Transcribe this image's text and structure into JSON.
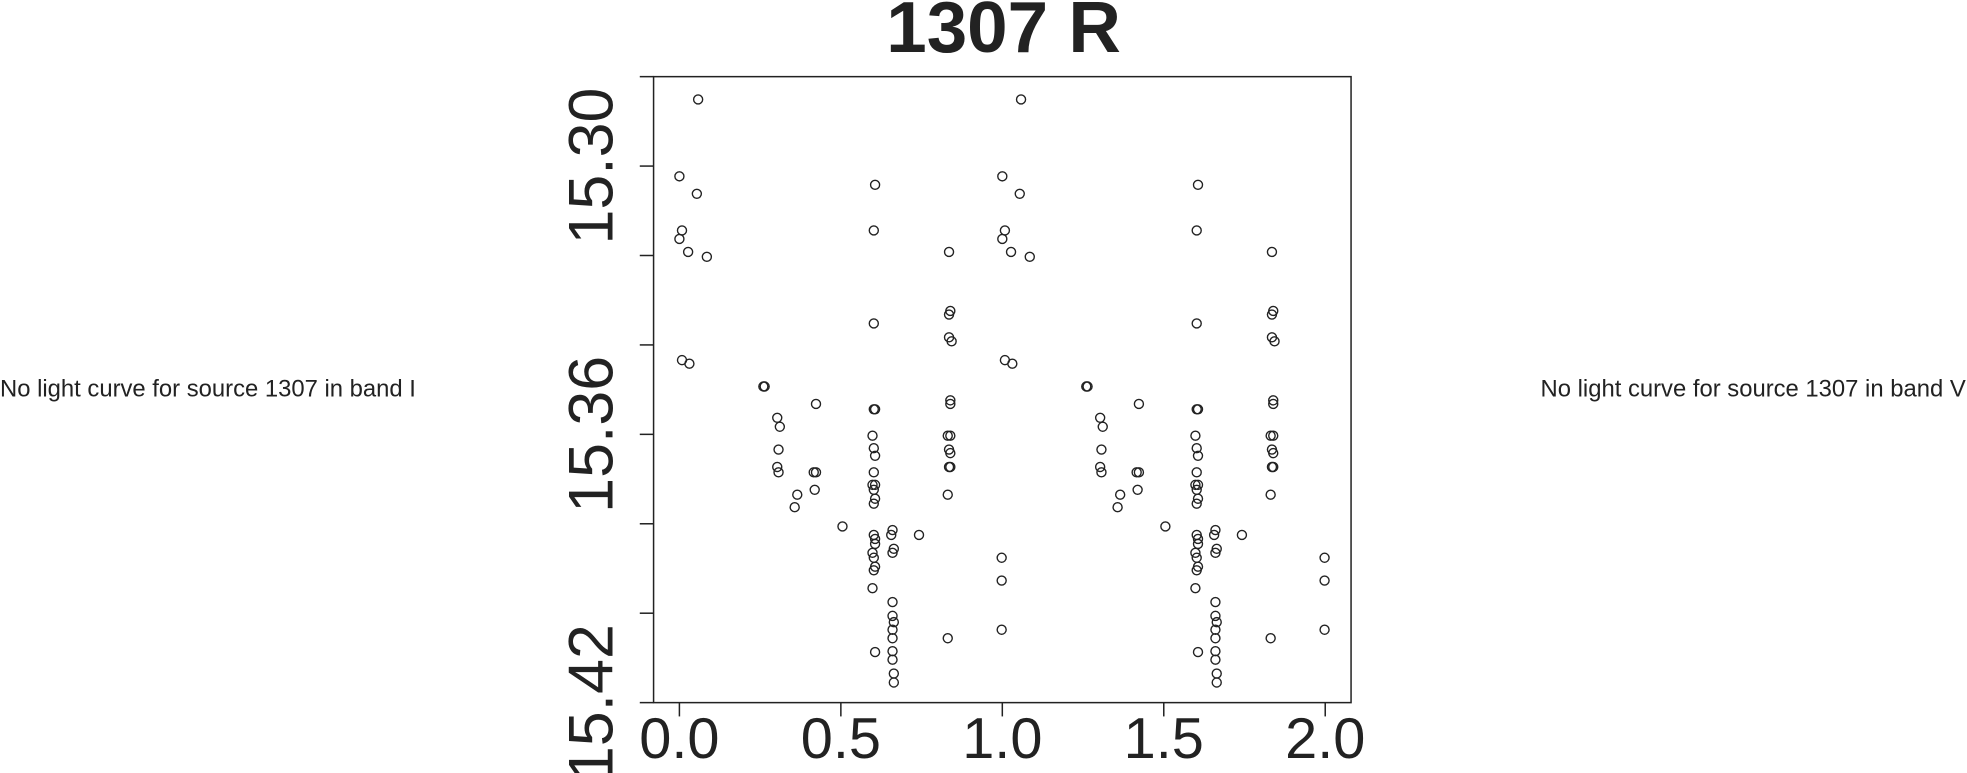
{
  "chart_data": {
    "type": "scatter",
    "title": "1307 R",
    "color": "#222222",
    "marker": "open-circle",
    "x": [
      0.058,
      0.0,
      0.054,
      0.008,
      0.0,
      0.027,
      0.085,
      0.008,
      0.031,
      0.264,
      0.26,
      0.303,
      0.311,
      0.307,
      0.303,
      0.307,
      0.365,
      0.357,
      0.423,
      0.416,
      0.423,
      0.419,
      0.505,
      0.606,
      0.602,
      0.602,
      0.606,
      0.602,
      0.598,
      0.602,
      0.606,
      0.602,
      0.598,
      0.606,
      0.602,
      0.606,
      0.602,
      0.602,
      0.606,
      0.606,
      0.598,
      0.602,
      0.606,
      0.602,
      0.598,
      0.606,
      0.66,
      0.656,
      0.664,
      0.66,
      0.66,
      0.66,
      0.664,
      0.66,
      0.66,
      0.66,
      0.66,
      0.664,
      0.664,
      0.742,
      0.835,
      0.839,
      0.835,
      0.835,
      0.843,
      0.839,
      0.839,
      0.831,
      0.839,
      0.835,
      0.839,
      0.835,
      0.839,
      0.831,
      0.831,
      0.998,
      0.998,
      0.998,
      1.058,
      1.0,
      1.054,
      1.008,
      1.0,
      1.027,
      1.085,
      1.008,
      1.031,
      1.264,
      1.26,
      1.303,
      1.311,
      1.307,
      1.303,
      1.307,
      1.365,
      1.357,
      1.423,
      1.416,
      1.423,
      1.419,
      1.505,
      1.606,
      1.602,
      1.602,
      1.606,
      1.602,
      1.598,
      1.602,
      1.606,
      1.602,
      1.598,
      1.606,
      1.602,
      1.606,
      1.602,
      1.602,
      1.606,
      1.606,
      1.598,
      1.602,
      1.606,
      1.602,
      1.598,
      1.606,
      1.66,
      1.656,
      1.664,
      1.66,
      1.66,
      1.66,
      1.664,
      1.66,
      1.66,
      1.66,
      1.66,
      1.664,
      1.664,
      1.742,
      1.835,
      1.839,
      1.835,
      1.835,
      1.843,
      1.839,
      1.839,
      1.831,
      1.839,
      1.835,
      1.839,
      1.835,
      1.839,
      1.831,
      1.831,
      1.998,
      1.998,
      1.998
    ],
    "values": [
      15.2851,
      15.3023,
      15.3062,
      15.3144,
      15.3163,
      15.3192,
      15.3203,
      15.3434,
      15.3442,
      15.3493,
      15.3493,
      15.3563,
      15.3583,
      15.3634,
      15.3673,
      15.3685,
      15.3735,
      15.3763,
      15.3532,
      15.3685,
      15.3685,
      15.3724,
      15.3806,
      15.3042,
      15.3144,
      15.3352,
      15.3544,
      15.3544,
      15.3603,
      15.3631,
      15.3648,
      15.3685,
      15.3713,
      15.3713,
      15.3724,
      15.3744,
      15.3755,
      15.3825,
      15.3834,
      15.3845,
      15.3865,
      15.3876,
      15.3896,
      15.3904,
      15.3944,
      15.4087,
      15.3814,
      15.3825,
      15.3856,
      15.3865,
      15.3975,
      15.4006,
      15.402,
      15.4037,
      15.4056,
      15.4085,
      15.4104,
      15.4135,
      15.4155,
      15.3825,
      15.3192,
      15.3324,
      15.3332,
      15.3383,
      15.3392,
      15.3524,
      15.3532,
      15.3603,
      15.3603,
      15.3634,
      15.3642,
      15.3673,
      15.3673,
      15.3735,
      15.4056,
      15.3876,
      15.3927,
      15.4037,
      15.2851,
      15.3023,
      15.3062,
      15.3144,
      15.3163,
      15.3192,
      15.3203,
      15.3434,
      15.3442,
      15.3493,
      15.3493,
      15.3563,
      15.3583,
      15.3634,
      15.3673,
      15.3685,
      15.3735,
      15.3763,
      15.3532,
      15.3685,
      15.3685,
      15.3724,
      15.3806,
      15.3042,
      15.3144,
      15.3352,
      15.3544,
      15.3544,
      15.3603,
      15.3631,
      15.3648,
      15.3685,
      15.3713,
      15.3713,
      15.3724,
      15.3744,
      15.3755,
      15.3825,
      15.3834,
      15.3845,
      15.3865,
      15.3876,
      15.3896,
      15.3904,
      15.3944,
      15.4087,
      15.3814,
      15.3825,
      15.3856,
      15.3865,
      15.3975,
      15.4006,
      15.402,
      15.4037,
      15.4056,
      15.4085,
      15.4104,
      15.4135,
      15.4155,
      15.3825,
      15.3192,
      15.3324,
      15.3332,
      15.3383,
      15.3392,
      15.3524,
      15.3532,
      15.3603,
      15.3603,
      15.3634,
      15.3642,
      15.3673,
      15.3673,
      15.3735,
      15.4056,
      15.3876,
      15.3927,
      15.4037
    ],
    "xlim": [
      -0.08,
      2.08
    ],
    "ylim": [
      15.42,
      15.28
    ],
    "xticks": [
      {
        "value": 0,
        "label": "0.0"
      },
      0.5,
      {
        "value": 1,
        "label": "1.0"
      },
      1.5,
      {
        "value": 2,
        "label": "2.0"
      }
    ],
    "yticks": [
      {
        "value": 15.3,
        "label": "15.30"
      },
      15.36,
      15.42
    ],
    "yminor_ticks": [
      15.28,
      15.32,
      15.34,
      15.38,
      15.4
    ]
  },
  "messages": [
    "No light curve for source 1307 in band I",
    "No light curve for source 1307 in band V"
  ]
}
